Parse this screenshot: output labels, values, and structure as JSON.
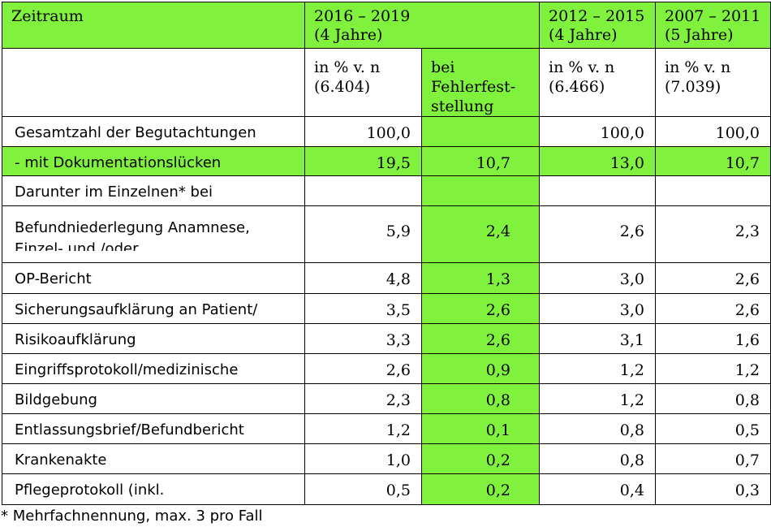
{
  "header": {
    "label": "Zeitraum",
    "periods": [
      {
        "years": "2016 – 2019",
        "duration": "(4 Jahre)"
      },
      {
        "years": "2012 – 2015",
        "duration": "(4 Jahre)"
      },
      {
        "years": "2007 – 2011",
        "duration": "(5 Jahre)"
      }
    ]
  },
  "subheader": {
    "c1_line1": "in % v. n",
    "c1_line2": "(6.404)",
    "c2_line1": "bei",
    "c2_line2": "Fehlerfest-",
    "c2_line3": "stellung",
    "c3_line1": "in % v. n",
    "c3_line2": "(6.466)",
    "c4_line1": "in % v. n",
    "c4_line2": "(7.039)"
  },
  "rows": [
    {
      "label": "Gesamtzahl der Begutachtungen",
      "c1": "100,0",
      "c2": "",
      "c3": "100,0",
      "c4": "100,0"
    },
    {
      "label": "- mit Dokumentationslücken",
      "c1": "19,5",
      "c2": "10,7",
      "c3": "13,0",
      "c4": "10,7"
    },
    {
      "label": "Darunter im Einzelnen* bei",
      "c1": "",
      "c2": "",
      "c3": "",
      "c4": ""
    },
    {
      "label": "Befundniederlegung Anamnese,",
      "label2": "Einzel- und /oder",
      "c1": "5,9",
      "c2": "2,4",
      "c3": "2,6",
      "c4": "2,3"
    },
    {
      "label": "OP-Bericht",
      "c1": "4,8",
      "c2": "1,3",
      "c3": "3,0",
      "c4": "2,6"
    },
    {
      "label": "Sicherungsaufklärung an Patient/",
      "c1": "3,5",
      "c2": "2,6",
      "c3": "3,0",
      "c4": "2,6"
    },
    {
      "label": "Risikoaufklärung",
      "c1": "3,3",
      "c2": "2,6",
      "c3": "3,1",
      "c4": "1,6"
    },
    {
      "label": "Eingriffsprotokoll/medizinische",
      "c1": "2,6",
      "c2": "0,9",
      "c3": "1,2",
      "c4": "1,2"
    },
    {
      "label": "Bildgebung",
      "c1": "2,3",
      "c2": "0,8",
      "c3": "1,2",
      "c4": "0,8"
    },
    {
      "label": "Entlassungsbrief/Befundbericht",
      "c1": "1,2",
      "c2": "0,1",
      "c3": "0,8",
      "c4": "0,5"
    },
    {
      "label": "Krankenakte",
      "c1": "1,0",
      "c2": "0,2",
      "c3": "0,8",
      "c4": "0,7"
    },
    {
      "label": "Pflegeprotokoll  (inkl.",
      "c1": "0,5",
      "c2": "0,2",
      "c3": "0,4",
      "c4": "0,3"
    }
  ],
  "footnote": "* Mehrfachnennung, max. 3 pro Fall",
  "colors": {
    "highlight": "#80f23e",
    "border": "#000000"
  }
}
